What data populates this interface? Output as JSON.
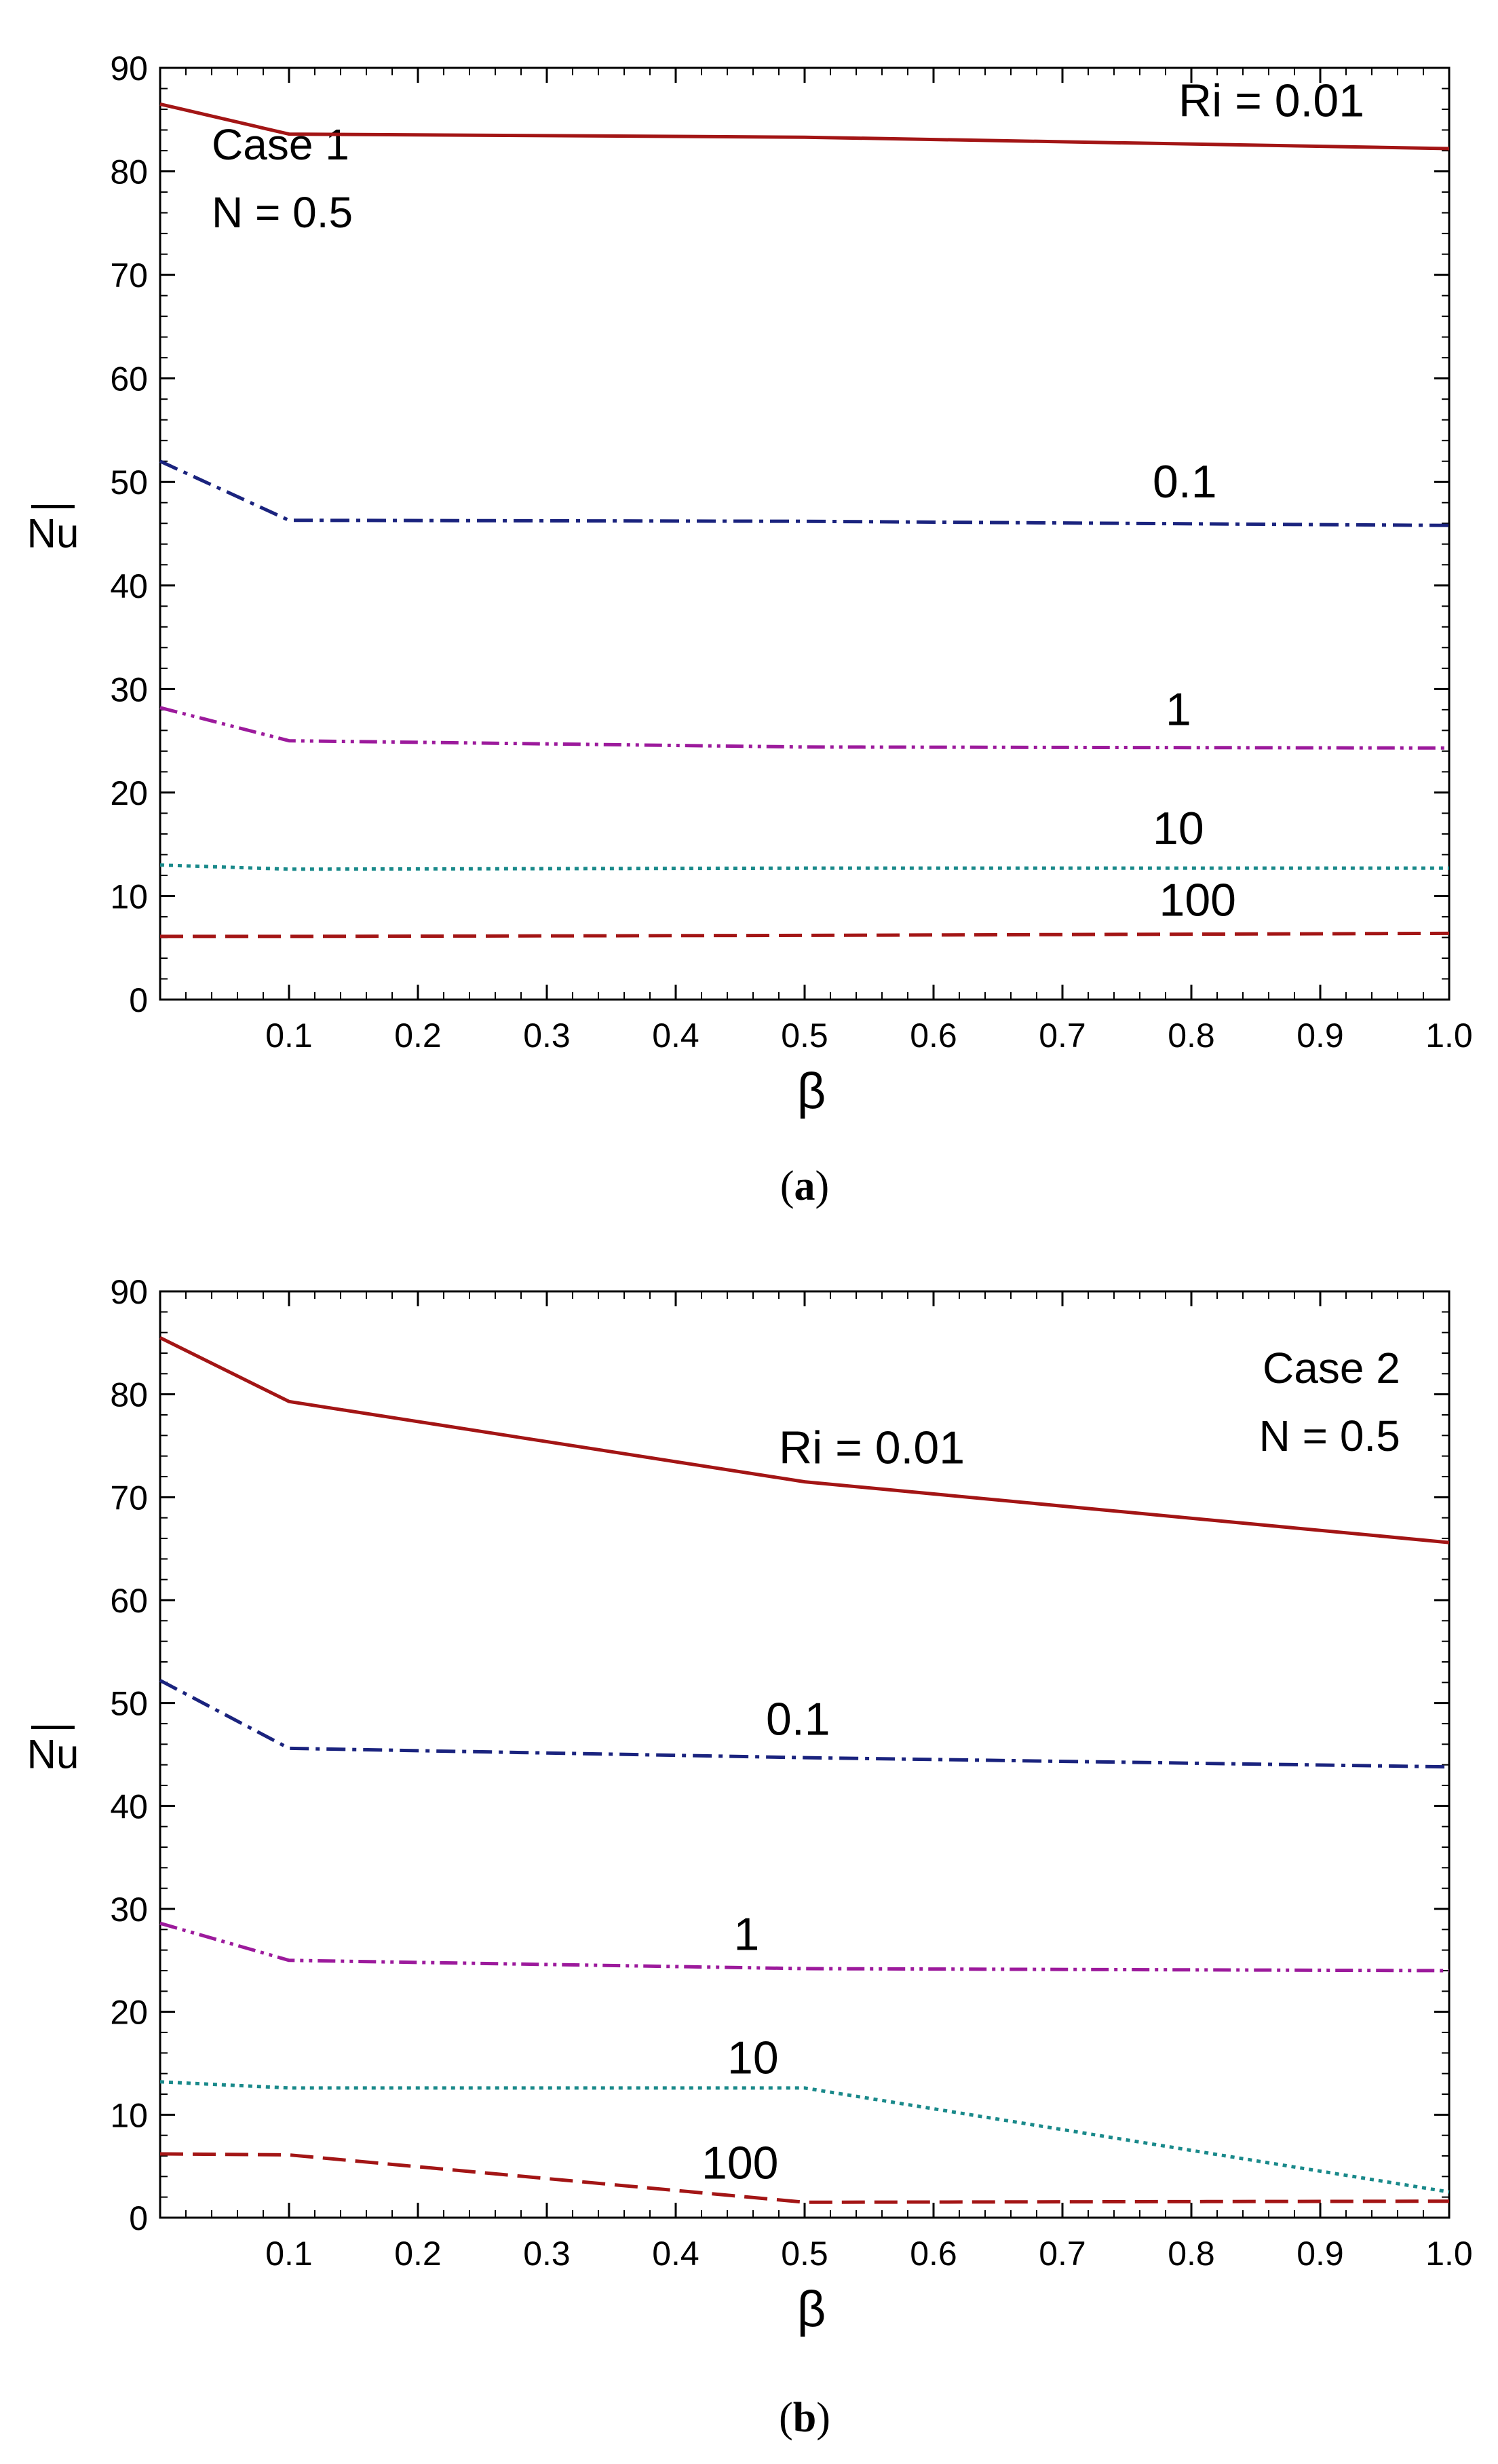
{
  "figure": {
    "panels": [
      {
        "id": "a",
        "caption_prefix": "(",
        "caption_letter": "a",
        "caption_suffix": ")"
      },
      {
        "id": "b",
        "caption_prefix": "(",
        "caption_letter": "b",
        "caption_suffix": ")"
      }
    ]
  },
  "chart_data": [
    {
      "type": "line",
      "panel": "a",
      "xlabel": "β",
      "ylabel": "Nu",
      "ylabel_overline": true,
      "xlim": [
        0,
        1.0
      ],
      "ylim": [
        0,
        90
      ],
      "xticks": [
        "0.1",
        "0.2",
        "0.3",
        "0.4",
        "0.5",
        "0.6",
        "0.7",
        "0.8",
        "0.9",
        "1.0"
      ],
      "xtick_values": [
        0.1,
        0.2,
        0.3,
        0.4,
        0.5,
        0.6,
        0.7,
        0.8,
        0.9,
        1.0
      ],
      "yticks": [
        "0",
        "10",
        "20",
        "30",
        "40",
        "50",
        "60",
        "70",
        "80",
        "90"
      ],
      "ytick_values": [
        0,
        10,
        20,
        30,
        40,
        50,
        60,
        70,
        80,
        90
      ],
      "annotation_lines": [
        "Case 1",
        "N = 0.5"
      ],
      "annotation_anchor": "top-left",
      "series": [
        {
          "name": "Ri = 0.01",
          "label": "Ri = 0.01",
          "color": "#a31515",
          "style": "solid",
          "x": [
            0,
            0.1,
            0.5,
            1.0
          ],
          "y": [
            86.5,
            83.6,
            83.3,
            82.2
          ],
          "label_at": [
            0.79,
            85.3
          ]
        },
        {
          "name": "Ri = 0.1",
          "label": "0.1",
          "color": "#1a237e",
          "style": "dashdot",
          "x": [
            0,
            0.1,
            0.5,
            1.0
          ],
          "y": [
            52.0,
            46.3,
            46.2,
            45.8
          ],
          "label_at": [
            0.77,
            48.5
          ]
        },
        {
          "name": "Ri = 1",
          "label": "1",
          "color": "#9c1a9c",
          "style": "dashdotdot",
          "x": [
            0,
            0.1,
            0.5,
            1.0
          ],
          "y": [
            28.2,
            25.0,
            24.4,
            24.3
          ],
          "label_at": [
            0.78,
            26.5
          ]
        },
        {
          "name": "Ri = 10",
          "label": "10",
          "color": "#19898a",
          "style": "dotted",
          "x": [
            0,
            0.1,
            0.5,
            1.0
          ],
          "y": [
            13.0,
            12.6,
            12.7,
            12.7
          ],
          "label_at": [
            0.77,
            15.0
          ]
        },
        {
          "name": "Ri = 100",
          "label": "100",
          "color": "#a31515",
          "style": "dashed",
          "x": [
            0,
            0.1,
            0.5,
            1.0
          ],
          "y": [
            6.1,
            6.1,
            6.2,
            6.4
          ],
          "label_at": [
            0.775,
            8.1
          ]
        }
      ]
    },
    {
      "type": "line",
      "panel": "b",
      "xlabel": "β",
      "ylabel": "Nu",
      "ylabel_overline": true,
      "xlim": [
        0,
        1.0
      ],
      "ylim": [
        0,
        90
      ],
      "xticks": [
        "0.1",
        "0.2",
        "0.3",
        "0.4",
        "0.5",
        "0.6",
        "0.7",
        "0.8",
        "0.9",
        "1.0"
      ],
      "xtick_values": [
        0.1,
        0.2,
        0.3,
        0.4,
        0.5,
        0.6,
        0.7,
        0.8,
        0.9,
        1.0
      ],
      "yticks": [
        "0",
        "10",
        "20",
        "30",
        "40",
        "50",
        "60",
        "70",
        "80",
        "90"
      ],
      "ytick_values": [
        0,
        10,
        20,
        30,
        40,
        50,
        60,
        70,
        80,
        90
      ],
      "annotation_lines": [
        "Case 2",
        "N = 0.5"
      ],
      "annotation_anchor": "top-right",
      "series": [
        {
          "name": "Ri = 0.01",
          "label": "Ri = 0.01",
          "color": "#a31515",
          "style": "solid",
          "x": [
            0,
            0.1,
            0.5,
            1.0
          ],
          "y": [
            85.5,
            79.3,
            71.5,
            65.6
          ],
          "label_at": [
            0.48,
            73.3
          ]
        },
        {
          "name": "Ri = 0.1",
          "label": "0.1",
          "color": "#1a237e",
          "style": "dashdot",
          "x": [
            0,
            0.1,
            0.5,
            1.0
          ],
          "y": [
            52.2,
            45.6,
            44.7,
            43.8
          ],
          "label_at": [
            0.47,
            46.9
          ]
        },
        {
          "name": "Ri = 1",
          "label": "1",
          "color": "#9c1a9c",
          "style": "dashdotdot",
          "x": [
            0,
            0.1,
            0.5,
            1.0
          ],
          "y": [
            28.6,
            25.0,
            24.2,
            24.0
          ],
          "label_at": [
            0.445,
            26.0
          ]
        },
        {
          "name": "Ri = 10",
          "label": "10",
          "color": "#19898a",
          "style": "dotted",
          "x": [
            0,
            0.1,
            0.5,
            1.0
          ],
          "y": [
            13.2,
            12.6,
            12.6,
            2.5
          ],
          "label_at": [
            0.44,
            14.0
          ]
        },
        {
          "name": "Ri = 100",
          "label": "100",
          "color": "#a31515",
          "style": "dashed",
          "x": [
            0,
            0.1,
            0.5,
            1.0
          ],
          "y": [
            6.2,
            6.1,
            1.5,
            1.6
          ],
          "label_at": [
            0.42,
            3.8
          ]
        }
      ]
    }
  ]
}
